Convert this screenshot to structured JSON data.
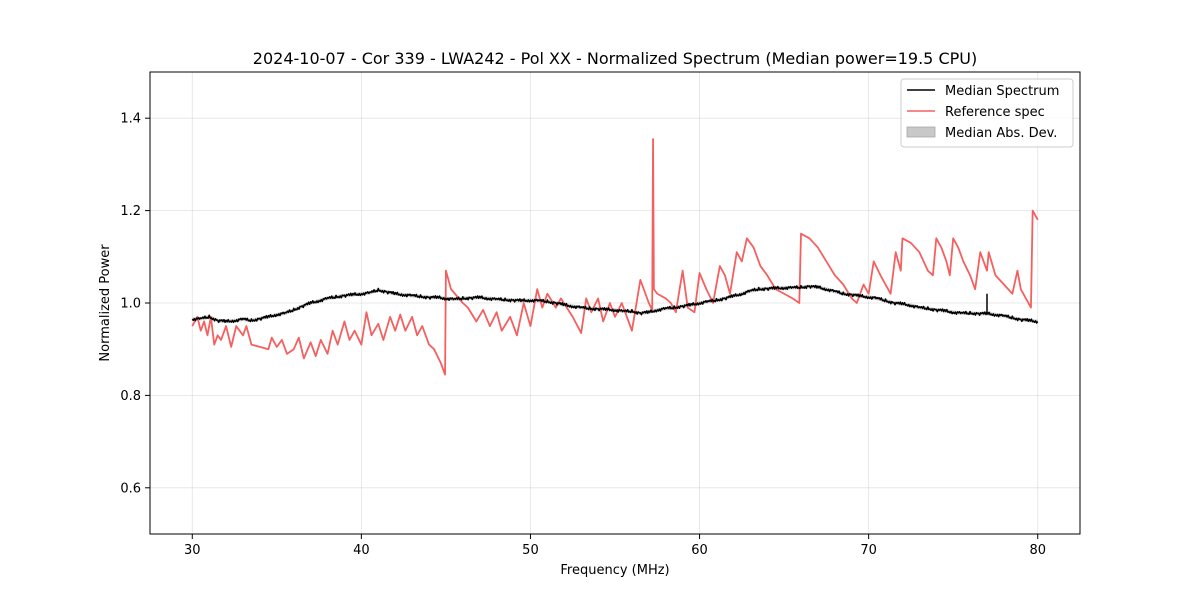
{
  "chart_data": {
    "type": "line",
    "title": "2024-10-07 - Cor 339 - LWA242 - Pol XX - Normalized Spectrum (Median power=19.5 CPU)",
    "xlabel": "Frequency (MHz)",
    "ylabel": "Normalized Power",
    "xlim": [
      27.5,
      82.5
    ],
    "ylim": [
      0.5,
      1.5
    ],
    "xticks": [
      30,
      40,
      50,
      60,
      70,
      80
    ],
    "yticks": [
      0.6,
      0.8,
      1.0,
      1.2,
      1.4
    ],
    "grid": true,
    "legend_position": "top-right",
    "legend": [
      "Median Spectrum",
      "Reference spec",
      "Median Abs. Dev."
    ],
    "colors": {
      "median": "#000000",
      "reference": "#f46060",
      "mad": "#c8c8c8"
    },
    "series": [
      {
        "name": "Median Spectrum",
        "x": [
          30,
          30.5,
          31,
          31.5,
          32,
          32.5,
          33,
          33.5,
          34,
          34.5,
          35,
          35.5,
          36,
          36.5,
          37,
          37.5,
          38,
          38.5,
          39,
          39.5,
          40,
          40.5,
          41,
          41.5,
          42,
          42.5,
          43,
          43.5,
          44,
          44.5,
          45,
          45.5,
          46,
          46.5,
          47,
          47.5,
          48,
          48.5,
          49,
          49.5,
          50,
          50.5,
          51,
          51.5,
          52,
          52.5,
          53,
          53.5,
          54,
          54.5,
          55,
          55.5,
          56,
          56.5,
          57,
          57.5,
          58,
          58.5,
          59,
          59.5,
          60,
          60.5,
          61,
          61.5,
          62,
          62.5,
          63,
          63.5,
          64,
          64.5,
          65,
          65.5,
          66,
          66.5,
          67,
          67.5,
          68,
          68.5,
          69,
          69.5,
          70,
          70.5,
          71,
          71.5,
          72,
          72.5,
          73,
          73.5,
          74,
          74.5,
          75,
          75.5,
          76,
          76.5,
          77,
          77.5,
          78,
          78.5,
          79,
          79.5,
          80
        ],
        "values": [
          0.965,
          0.966,
          0.97,
          0.962,
          0.96,
          0.962,
          0.965,
          0.962,
          0.966,
          0.97,
          0.975,
          0.978,
          0.985,
          0.993,
          1.0,
          1.005,
          1.01,
          1.013,
          1.016,
          1.018,
          1.02,
          1.022,
          1.028,
          1.024,
          1.02,
          1.018,
          1.016,
          1.014,
          1.012,
          1.012,
          1.01,
          1.008,
          1.01,
          1.011,
          1.012,
          1.01,
          1.008,
          1.007,
          1.006,
          1.005,
          1.006,
          1.005,
          1.003,
          1.0,
          0.996,
          0.993,
          0.99,
          0.988,
          0.987,
          0.986,
          0.985,
          0.982,
          0.982,
          0.978,
          0.98,
          0.985,
          0.988,
          0.99,
          0.993,
          0.996,
          1.0,
          1.003,
          1.006,
          1.01,
          1.015,
          1.02,
          1.026,
          1.03,
          1.031,
          1.032,
          1.033,
          1.033,
          1.034,
          1.036,
          1.034,
          1.03,
          1.025,
          1.02,
          1.018,
          1.015,
          1.013,
          1.01,
          1.005,
          1.0,
          0.998,
          0.995,
          0.99,
          0.988,
          0.985,
          0.983,
          0.98,
          0.978,
          0.978,
          0.977,
          0.977,
          0.975,
          0.972,
          0.968,
          0.964,
          0.962,
          0.96
        ],
        "mad": 0.004
      },
      {
        "name": "Reference spec",
        "x": [
          30,
          30.3,
          30.5,
          30.7,
          30.9,
          31.1,
          31.3,
          31.5,
          31.7,
          32.0,
          32.3,
          32.6,
          33.0,
          33.2,
          33.5,
          34.0,
          34.5,
          34.7,
          35.0,
          35.3,
          35.6,
          36.0,
          36.3,
          36.6,
          37.0,
          37.3,
          37.6,
          38.0,
          38.3,
          38.6,
          39.0,
          39.3,
          39.6,
          40.0,
          40.3,
          40.6,
          41.0,
          41.3,
          41.7,
          42.0,
          42.3,
          42.6,
          43.0,
          43.3,
          43.6,
          44.0,
          44.3,
          44.7,
          44.95,
          45.0,
          45.3,
          46.0,
          46.3,
          46.8,
          47.2,
          47.6,
          48.0,
          48.3,
          48.8,
          49.2,
          49.6,
          50.0,
          50.4,
          50.7,
          51.0,
          51.5,
          51.8,
          52.5,
          53.0,
          53.3,
          53.6,
          54.0,
          54.3,
          54.7,
          55.0,
          55.4,
          55.8,
          56.0,
          56.5,
          57.0,
          57.2,
          57.25,
          57.3,
          57.5,
          58.0,
          58.3,
          58.6,
          59.0,
          59.3,
          59.7,
          60.0,
          60.4,
          60.8,
          61.2,
          61.5,
          61.8,
          62.2,
          62.5,
          62.8,
          63.2,
          63.6,
          64.0,
          64.5,
          65.0,
          65.5,
          65.9,
          66.0,
          66.5,
          67.0,
          67.5,
          68.0,
          68.5,
          69.0,
          69.3,
          69.7,
          70.0,
          70.3,
          70.7,
          71.0,
          71.3,
          71.6,
          71.9,
          72.0,
          72.5,
          73.0,
          73.5,
          73.8,
          74.0,
          74.3,
          74.6,
          74.8,
          75.0,
          75.3,
          75.6,
          76.0,
          76.3,
          76.6,
          77.0,
          77.1,
          77.5,
          78.0,
          78.5,
          78.8,
          79.0,
          79.3,
          79.6,
          79.7,
          80.0
        ],
        "values": [
          0.95,
          0.97,
          0.94,
          0.96,
          0.93,
          0.97,
          0.91,
          0.93,
          0.92,
          0.95,
          0.905,
          0.95,
          0.93,
          0.95,
          0.91,
          0.905,
          0.9,
          0.925,
          0.905,
          0.92,
          0.89,
          0.9,
          0.925,
          0.88,
          0.915,
          0.885,
          0.92,
          0.89,
          0.94,
          0.91,
          0.96,
          0.92,
          0.94,
          0.91,
          0.98,
          0.93,
          0.955,
          0.92,
          0.97,
          0.94,
          0.975,
          0.94,
          0.97,
          0.93,
          0.95,
          0.91,
          0.9,
          0.87,
          0.845,
          1.07,
          1.03,
          1.0,
          0.99,
          0.96,
          0.985,
          0.95,
          0.98,
          0.94,
          0.97,
          0.93,
          1.0,
          0.95,
          1.03,
          0.99,
          1.02,
          0.99,
          1.01,
          0.97,
          0.935,
          1.01,
          0.98,
          1.01,
          0.96,
          1.0,
          0.97,
          1.0,
          0.96,
          0.94,
          1.05,
          1.0,
          0.985,
          1.355,
          1.03,
          1.02,
          1.01,
          1.0,
          0.98,
          1.07,
          0.99,
          0.98,
          1.065,
          1.03,
          1.0,
          1.08,
          1.06,
          1.02,
          1.11,
          1.09,
          1.14,
          1.12,
          1.08,
          1.06,
          1.03,
          1.02,
          1.01,
          1.0,
          1.15,
          1.14,
          1.12,
          1.09,
          1.06,
          1.04,
          1.01,
          1.0,
          1.04,
          1.02,
          1.09,
          1.06,
          1.04,
          1.02,
          1.11,
          1.07,
          1.14,
          1.13,
          1.11,
          1.07,
          1.06,
          1.14,
          1.12,
          1.09,
          1.06,
          1.14,
          1.12,
          1.09,
          1.06,
          1.03,
          1.11,
          1.07,
          1.11,
          1.06,
          1.04,
          1.02,
          1.07,
          1.03,
          1.01,
          0.99,
          1.2,
          1.18
        ]
      }
    ]
  }
}
